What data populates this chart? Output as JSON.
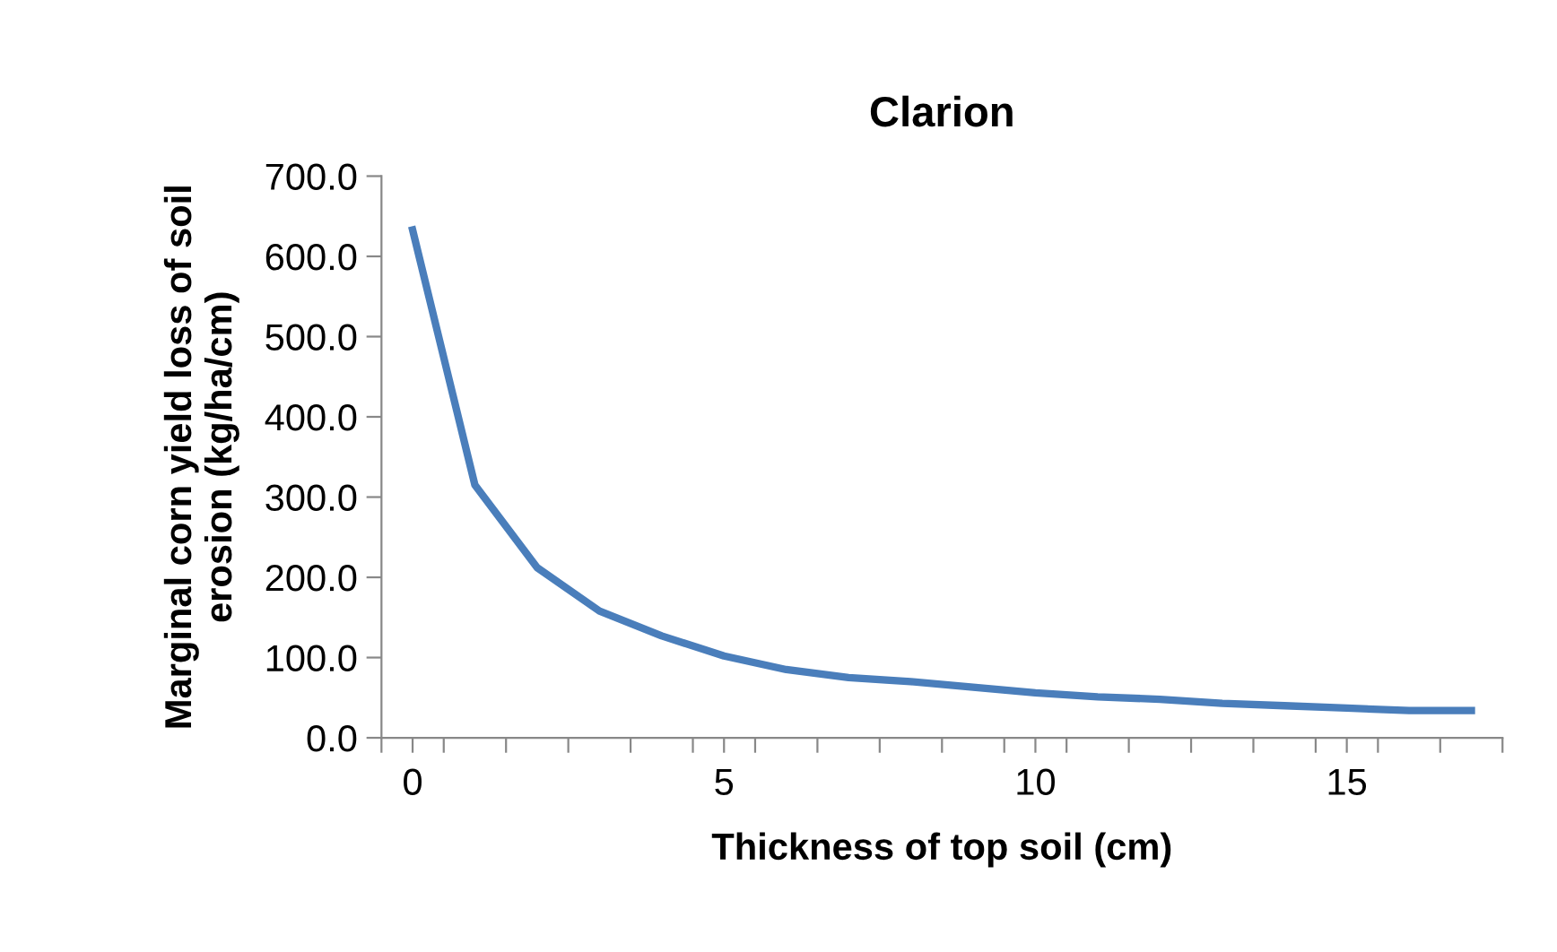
{
  "chart_data": {
    "type": "line",
    "title": "Clarion",
    "xlabel": "Thickness of top soil (cm)",
    "ylabel": "Marginal corn yield loss of soil\nerosion (kg/ha/cm)",
    "x": [
      0,
      1,
      2,
      3,
      4,
      5,
      6,
      7,
      8,
      9,
      10,
      11,
      12,
      13,
      14,
      15,
      16,
      17
    ],
    "series": [
      {
        "color": "#4a7ebb",
        "values": [
          633,
          315,
          212,
          158,
          127,
          102,
          85,
          75,
          70,
          63,
          56,
          51,
          48,
          43,
          40,
          37,
          34,
          34
        ]
      }
    ],
    "xlim": [
      -0.5,
      17.5
    ],
    "xticks": [
      {
        "value": -0.5,
        "label": null
      },
      0,
      {
        "value": 0.5,
        "label": null
      },
      {
        "value": 1.5,
        "label": null
      },
      {
        "value": 2.5,
        "label": null
      },
      {
        "value": 3.5,
        "label": null
      },
      {
        "value": 4.5,
        "label": null
      },
      5,
      {
        "value": 5.5,
        "label": null
      },
      {
        "value": 6.5,
        "label": null
      },
      {
        "value": 7.5,
        "label": null
      },
      {
        "value": 8.5,
        "label": null
      },
      {
        "value": 9.5,
        "label": null
      },
      10,
      {
        "value": 10.5,
        "label": null
      },
      {
        "value": 11.5,
        "label": null
      },
      {
        "value": 12.5,
        "label": null
      },
      {
        "value": 13.5,
        "label": null
      },
      {
        "value": 14.5,
        "label": null
      },
      15,
      {
        "value": 15.5,
        "label": null
      },
      {
        "value": 16.5,
        "label": null
      },
      {
        "value": 17.5,
        "label": null
      }
    ],
    "ylim": [
      0,
      700
    ],
    "yticks": [
      {
        "value": 0,
        "label": "0.0"
      },
      {
        "value": 100,
        "label": "100.0"
      },
      {
        "value": 200,
        "label": "200.0"
      },
      {
        "value": 300,
        "label": "300.0"
      },
      {
        "value": 400,
        "label": "400.0"
      },
      {
        "value": 500,
        "label": "500.0"
      },
      {
        "value": 600,
        "label": "600.0"
      },
      {
        "value": 700,
        "label": "700.0"
      }
    ],
    "grid": false,
    "legend": false,
    "marker": "none",
    "line_style": "solid"
  }
}
